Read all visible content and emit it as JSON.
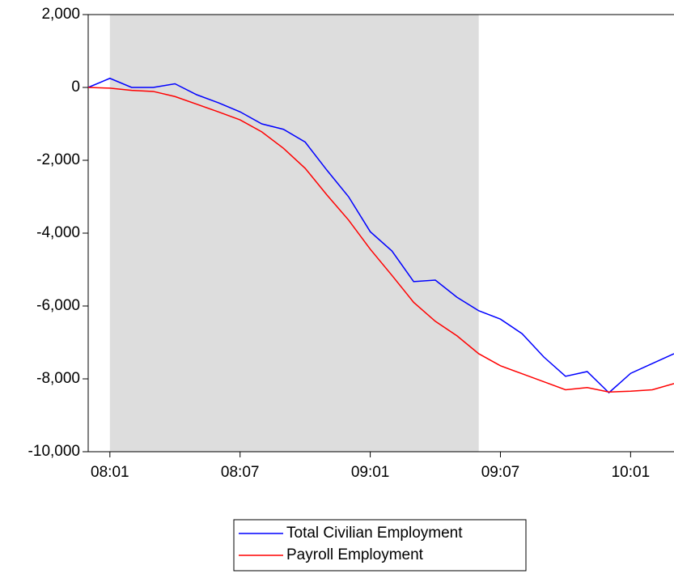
{
  "chart_data": {
    "type": "line",
    "categories": [
      null,
      "08:01",
      null,
      null,
      null,
      null,
      null,
      "08:07",
      null,
      null,
      null,
      null,
      null,
      "09:01",
      null,
      null,
      null,
      null,
      null,
      "09:07",
      null,
      null,
      null,
      null,
      null,
      "10:01",
      null,
      null
    ],
    "series": [
      {
        "name": "Total Civilian Employment",
        "color": "#0000ff",
        "values": [
          0,
          250,
          0,
          0,
          100,
          -200,
          -420,
          -670,
          -1000,
          -1150,
          -1500,
          -2270,
          -3000,
          -3960,
          -4490,
          -5330,
          -5290,
          -5760,
          -6130,
          -6360,
          -6760,
          -7400,
          -7930,
          -7800,
          -8380,
          -7850,
          -7580,
          -7310
        ]
      },
      {
        "name": "Payroll Employment",
        "color": "#ff0000",
        "values": [
          0,
          -20,
          -80,
          -110,
          -250,
          -460,
          -670,
          -890,
          -1220,
          -1670,
          -2220,
          -2950,
          -3640,
          -4440,
          -5160,
          -5900,
          -6420,
          -6820,
          -7310,
          -7640,
          -7860,
          -8080,
          -8300,
          -8240,
          -8360,
          -8340,
          -8300,
          -8130
        ]
      }
    ],
    "ylim": [
      -10000,
      2000
    ],
    "yticks": [
      {
        "value": -10000,
        "label": "-10,000"
      },
      {
        "value": -8000,
        "label": "-8,000"
      },
      {
        "value": -6000,
        "label": "-6,000"
      },
      {
        "value": -4000,
        "label": "-4,000"
      },
      {
        "value": -2000,
        "label": "-2,000"
      },
      0,
      {
        "value": 2000,
        "label": "2,000"
      }
    ],
    "shaded_categories": [
      1,
      18
    ],
    "shade_color": "#dddddd",
    "grid": false
  }
}
